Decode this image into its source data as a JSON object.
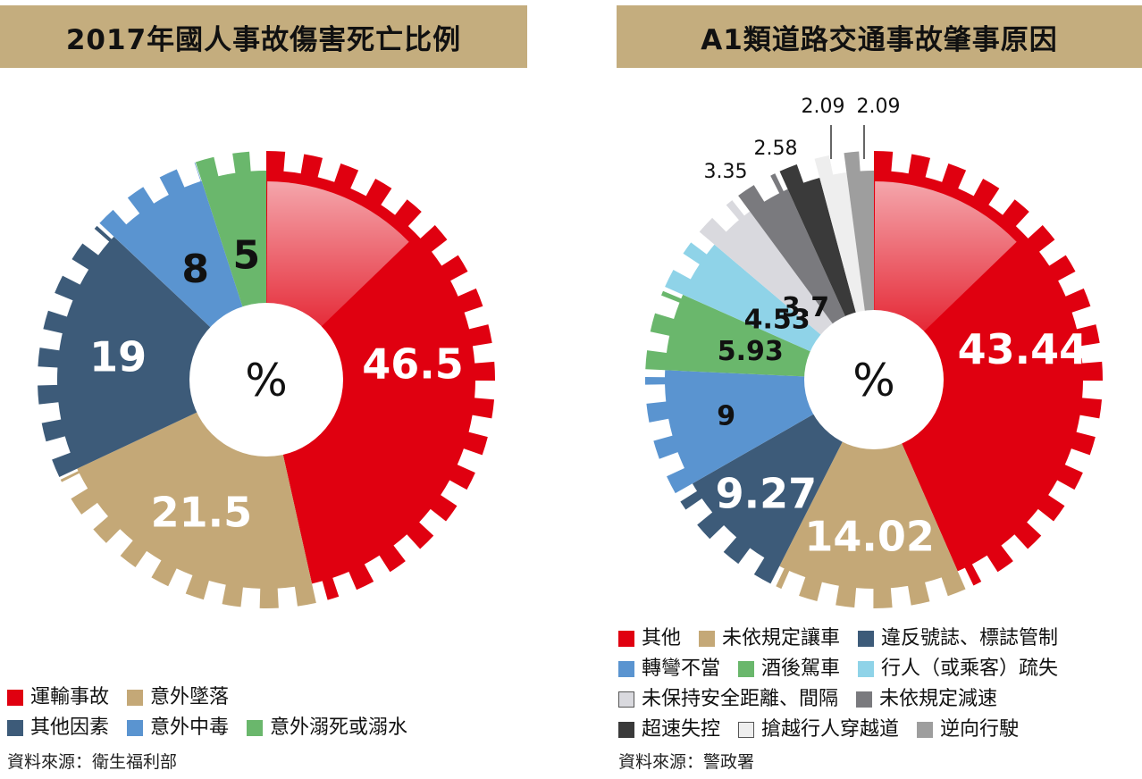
{
  "chart_data": [
    {
      "type": "pie",
      "title": "2017年國人事故傷害死亡比例",
      "center_label": "%",
      "slices": [
        {
          "label": "運輸事故",
          "value": 46.5,
          "value_text": "46.5",
          "color": "#e00010",
          "text_color": "#ffffff"
        },
        {
          "label": "意外墜落",
          "value": 21.5,
          "value_text": "21.5",
          "color": "#c4a877",
          "text_color": "#ffffff"
        },
        {
          "label": "其他因素",
          "value": 19,
          "value_text": "19",
          "color": "#3d5b79",
          "text_color": "#ffffff"
        },
        {
          "label": "意外中毒",
          "value": 8,
          "value_text": "8",
          "color": "#5a94d0",
          "text_color": "#111111"
        },
        {
          "label": "意外溺死或溺水",
          "value": 5,
          "value_text": "5",
          "color": "#6ab76c",
          "text_color": "#111111"
        }
      ],
      "legend_rows": [
        [
          "運輸事故",
          "意外墜落"
        ],
        [
          "其他因素",
          "意外中毒",
          "意外溺死或溺水"
        ]
      ],
      "source": "資料來源：衛生福利部"
    },
    {
      "type": "pie",
      "title": "A1類道路交通事故肇事原因",
      "center_label": "%",
      "slices": [
        {
          "label": "其他",
          "value": 43.44,
          "value_text": "43.44",
          "color": "#e00010",
          "text_color": "#ffffff"
        },
        {
          "label": "未依規定讓車",
          "value": 14.02,
          "value_text": "14.02",
          "color": "#c4a877",
          "text_color": "#ffffff"
        },
        {
          "label": "違反號誌、標誌管制",
          "value": 9.27,
          "value_text": "9.27",
          "color": "#3d5b79",
          "text_color": "#ffffff"
        },
        {
          "label": "轉彎不當",
          "value": 9,
          "value_text": "9",
          "color": "#5a94d0",
          "text_color": "#111111"
        },
        {
          "label": "酒後駕車",
          "value": 5.93,
          "value_text": "5.93",
          "color": "#6ab76c",
          "text_color": "#111111"
        },
        {
          "label": "行人（或乘客）疏失",
          "value": 4.53,
          "value_text": "4.53",
          "color": "#8fd3e8",
          "text_color": "#111111"
        },
        {
          "label": "未保持安全距離、間隔",
          "value": 3.7,
          "value_text": "3.7",
          "color": "#d9d9de",
          "text_color": "#111111"
        },
        {
          "label": "未依規定減速",
          "value": 3.35,
          "value_text": "3.35",
          "color": "#7a7a7e",
          "text_color": "#111111"
        },
        {
          "label": "超速失控",
          "value": 2.58,
          "value_text": "2.58",
          "color": "#3a3a3a",
          "text_color": "#111111"
        },
        {
          "label": "搶越行人穿越道",
          "value": 2.09,
          "value_text": "2.09",
          "color": "#eeeeee",
          "text_color": "#111111"
        },
        {
          "label": "逆向行駛",
          "value": 2.09,
          "value_text": "2.09",
          "color": "#9e9e9e",
          "text_color": "#111111"
        }
      ],
      "legend_rows": [
        [
          "其他",
          "未依規定讓車",
          "違反號誌、標誌管制"
        ],
        [
          "轉彎不當",
          "酒後駕車",
          "行人（或乘客）疏失"
        ],
        [
          "未保持安全距離、間隔",
          "未依規定減速"
        ],
        [
          "超速失控",
          "搶越行人穿越道",
          "逆向行駛"
        ]
      ],
      "source": "資料來源：警政署"
    }
  ]
}
